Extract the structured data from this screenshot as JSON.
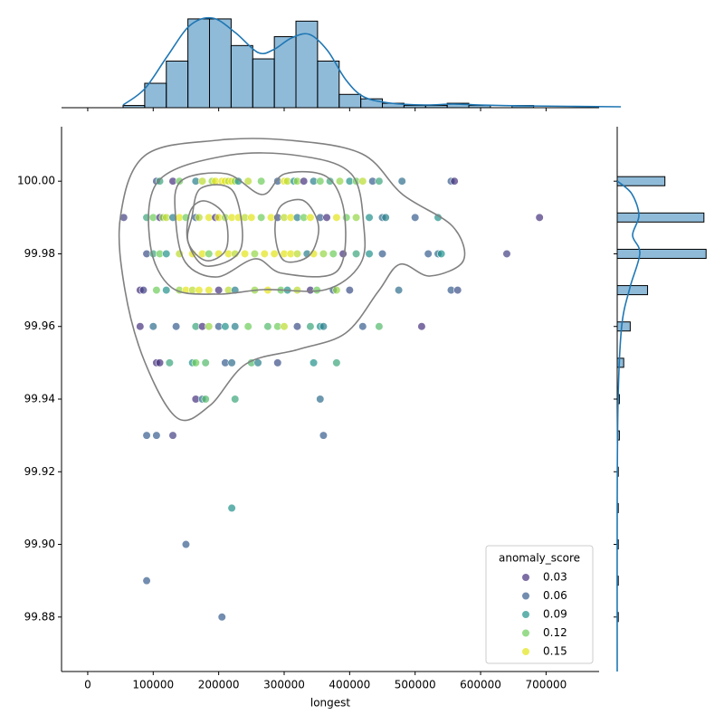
{
  "chart_data": [
    {
      "type": "scatter",
      "x_label": "longest",
      "legend_title": "anomaly_score",
      "legend_loc": "lower right",
      "xlim": [
        -40000,
        781000
      ],
      "ylim": [
        99.865,
        100.015
      ],
      "xticks": [
        0,
        100000,
        200000,
        300000,
        400000,
        500000,
        600000,
        700000
      ],
      "yticks": [
        99.88,
        {
          "value": 99.9,
          "label": "99.90"
        },
        99.92,
        99.94,
        99.96,
        99.98,
        {
          "value": 100,
          "label": "100.00"
        }
      ],
      "hue_levels": [
        0.03,
        0.06,
        0.09,
        0.12,
        0.15
      ],
      "hue_colors": [
        "#46327e",
        "#365c8d",
        "#21918c",
        "#6ccd5a",
        "#e3e418"
      ],
      "alpha": 0.7,
      "x": [
        105000,
        110000,
        130000,
        140000,
        165000,
        175000,
        190000,
        195000,
        205000,
        210000,
        215000,
        220000,
        225000,
        230000,
        245000,
        265000,
        290000,
        300000,
        305000,
        315000,
        320000,
        330000,
        345000,
        355000,
        370000,
        385000,
        400000,
        410000,
        420000,
        435000,
        445000,
        480000,
        555000,
        560000,
        55000,
        90000,
        100000,
        110000,
        115000,
        120000,
        130000,
        140000,
        150000,
        165000,
        170000,
        185000,
        195000,
        200000,
        210000,
        220000,
        230000,
        240000,
        250000,
        265000,
        280000,
        290000,
        300000,
        310000,
        320000,
        330000,
        340000,
        355000,
        365000,
        380000,
        395000,
        410000,
        430000,
        450000,
        455000,
        500000,
        535000,
        690000,
        90000,
        100000,
        110000,
        120000,
        140000,
        160000,
        175000,
        185000,
        200000,
        215000,
        225000,
        240000,
        255000,
        270000,
        285000,
        300000,
        310000,
        320000,
        335000,
        345000,
        360000,
        375000,
        390000,
        410000,
        430000,
        450000,
        520000,
        535000,
        540000,
        640000,
        80000,
        85000,
        105000,
        120000,
        140000,
        150000,
        160000,
        170000,
        185000,
        200000,
        215000,
        225000,
        255000,
        275000,
        295000,
        305000,
        320000,
        340000,
        350000,
        375000,
        380000,
        400000,
        475000,
        555000,
        565000,
        80000,
        100000,
        135000,
        165000,
        175000,
        185000,
        200000,
        210000,
        225000,
        245000,
        275000,
        290000,
        300000,
        320000,
        340000,
        355000,
        360000,
        420000,
        445000,
        510000,
        105000,
        110000,
        125000,
        160000,
        165000,
        180000,
        210000,
        220000,
        250000,
        260000,
        290000,
        345000,
        380000,
        165000,
        175000,
        180000,
        225000,
        355000,
        90000,
        105000,
        130000,
        360000,
        220000,
        150000,
        90000,
        205000
      ],
      "y": [
        100,
        100,
        100,
        100,
        100,
        100,
        100,
        100,
        100,
        100,
        100,
        100,
        100,
        100,
        100,
        100,
        100,
        100,
        100,
        100,
        100,
        100,
        100,
        100,
        100,
        100,
        100,
        100,
        100,
        100,
        100,
        100,
        100,
        100,
        99.99,
        99.99,
        99.99,
        99.99,
        99.99,
        99.99,
        99.99,
        99.99,
        99.99,
        99.99,
        99.99,
        99.99,
        99.99,
        99.99,
        99.99,
        99.99,
        99.99,
        99.99,
        99.99,
        99.99,
        99.99,
        99.99,
        99.99,
        99.99,
        99.99,
        99.99,
        99.99,
        99.99,
        99.99,
        99.99,
        99.99,
        99.99,
        99.99,
        99.99,
        99.99,
        99.99,
        99.99,
        99.99,
        99.98,
        99.98,
        99.98,
        99.98,
        99.98,
        99.98,
        99.98,
        99.98,
        99.98,
        99.98,
        99.98,
        99.98,
        99.98,
        99.98,
        99.98,
        99.98,
        99.98,
        99.98,
        99.98,
        99.98,
        99.98,
        99.98,
        99.98,
        99.98,
        99.98,
        99.98,
        99.98,
        99.98,
        99.98,
        99.98,
        99.97,
        99.97,
        99.97,
        99.97,
        99.97,
        99.97,
        99.97,
        99.97,
        99.97,
        99.97,
        99.97,
        99.97,
        99.97,
        99.97,
        99.97,
        99.97,
        99.97,
        99.97,
        99.97,
        99.97,
        99.97,
        99.97,
        99.97,
        99.97,
        99.97,
        99.96,
        99.96,
        99.96,
        99.96,
        99.96,
        99.96,
        99.96,
        99.96,
        99.96,
        99.96,
        99.96,
        99.96,
        99.96,
        99.96,
        99.96,
        99.96,
        99.96,
        99.96,
        99.96,
        99.96,
        99.95,
        99.95,
        99.95,
        99.95,
        99.95,
        99.95,
        99.95,
        99.95,
        99.95,
        99.95,
        99.95,
        99.95,
        99.95,
        99.94,
        99.94,
        99.94,
        99.94,
        99.94,
        99.93,
        99.93,
        99.93,
        99.93,
        99.91,
        99.9,
        99.89,
        99.88
      ],
      "hue": [
        0.05,
        0.1,
        0.03,
        0.12,
        0.08,
        0.14,
        0.13,
        0.15,
        0.15,
        0.16,
        0.14,
        0.15,
        0.13,
        0.09,
        0.14,
        0.12,
        0.06,
        0.15,
        0.14,
        0.09,
        0.13,
        0.03,
        0.08,
        0.12,
        0.1,
        0.13,
        0.09,
        0.12,
        0.14,
        0.06,
        0.1,
        0.07,
        0.06,
        0.03,
        0.04,
        0.1,
        0.12,
        0.03,
        0.13,
        0.14,
        0.08,
        0.15,
        0.12,
        0.06,
        0.14,
        0.15,
        0.03,
        0.15,
        0.13,
        0.16,
        0.15,
        0.14,
        0.16,
        0.12,
        0.15,
        0.05,
        0.14,
        0.15,
        0.08,
        0.12,
        0.16,
        0.06,
        0.03,
        0.15,
        0.12,
        0.13,
        0.09,
        0.07,
        0.08,
        0.06,
        0.09,
        0.02,
        0.05,
        0.1,
        0.12,
        0.09,
        0.14,
        0.15,
        0.16,
        0.12,
        0.15,
        0.15,
        0.14,
        0.16,
        0.13,
        0.15,
        0.16,
        0.15,
        0.16,
        0.14,
        0.08,
        0.15,
        0.13,
        0.12,
        0.03,
        0.1,
        0.09,
        0.06,
        0.06,
        0.07,
        0.09,
        0.04,
        0.02,
        0.04,
        0.12,
        0.09,
        0.13,
        0.15,
        0.14,
        0.16,
        0.15,
        0.03,
        0.14,
        0.08,
        0.13,
        0.16,
        0.12,
        0.09,
        0.14,
        0.03,
        0.12,
        0.06,
        0.13,
        0.05,
        0.07,
        0.06,
        0.05,
        0.03,
        0.07,
        0.06,
        0.1,
        0.03,
        0.13,
        0.06,
        0.09,
        0.08,
        0.12,
        0.11,
        0.12,
        0.14,
        0.05,
        0.1,
        0.09,
        0.08,
        0.06,
        0.11,
        0.02,
        0.03,
        0.02,
        0.1,
        0.09,
        0.12,
        0.11,
        0.06,
        0.07,
        0.11,
        0.08,
        0.05,
        0.09,
        0.1,
        0.02,
        0.07,
        0.11,
        0.1,
        0.07,
        0.06,
        0.06,
        0.04,
        0.06,
        0.09,
        0.06,
        0.06,
        0.06
      ]
    },
    {
      "type": "histogram",
      "orientation": "vertical",
      "color": "#1f77b4",
      "alpha": 0.5,
      "bins": [
        54000,
        87000,
        120000,
        153000,
        186000,
        219000,
        252000,
        285000,
        318000,
        351000,
        384000,
        417000,
        450000,
        483000,
        516000,
        549000,
        582000,
        615000,
        648000,
        681000
      ],
      "values": [
        1,
        11,
        21,
        40,
        40,
        28,
        22,
        32,
        39,
        21,
        6,
        4,
        2,
        1,
        1,
        2,
        1,
        0,
        1
      ],
      "ylim": [
        0,
        42
      ]
    },
    {
      "type": "histogram",
      "orientation": "horizontal",
      "color": "#1f77b4",
      "alpha": 0.5,
      "bins": [
        99.87875,
        99.88125,
        99.88375,
        99.88625,
        99.88875,
        99.89125,
        99.89375,
        99.89625,
        99.89875,
        99.90125,
        99.90375,
        99.90625,
        99.90875,
        99.91125,
        99.91375,
        99.91625,
        99.91875,
        99.92125,
        99.92375,
        99.92625,
        99.92875,
        99.93125,
        99.93375,
        99.93625,
        99.93875,
        99.94125,
        99.94375,
        99.94625,
        99.94875,
        99.95125,
        99.95375,
        99.95625,
        99.95875,
        99.96125,
        99.96375,
        99.96625,
        99.96875,
        99.97125,
        99.97375,
        99.97625,
        99.97875,
        99.98125,
        99.98375,
        99.98625,
        99.98875,
        99.99125,
        99.99375,
        99.99625,
        99.99875,
        100.00125,
        100.00375
      ],
      "values": [
        1,
        0,
        0,
        0,
        1,
        0,
        0,
        0,
        1,
        0,
        0,
        0,
        1,
        0,
        0,
        0,
        1,
        0,
        0,
        0,
        2,
        0,
        0,
        0,
        2,
        0,
        0,
        0,
        6,
        0,
        0,
        0,
        12,
        0,
        0,
        0,
        28,
        0,
        0,
        0,
        82,
        0,
        0,
        0,
        80,
        0,
        0,
        0,
        44,
        0
      ],
      "xlim": [
        0,
        86
      ]
    }
  ]
}
